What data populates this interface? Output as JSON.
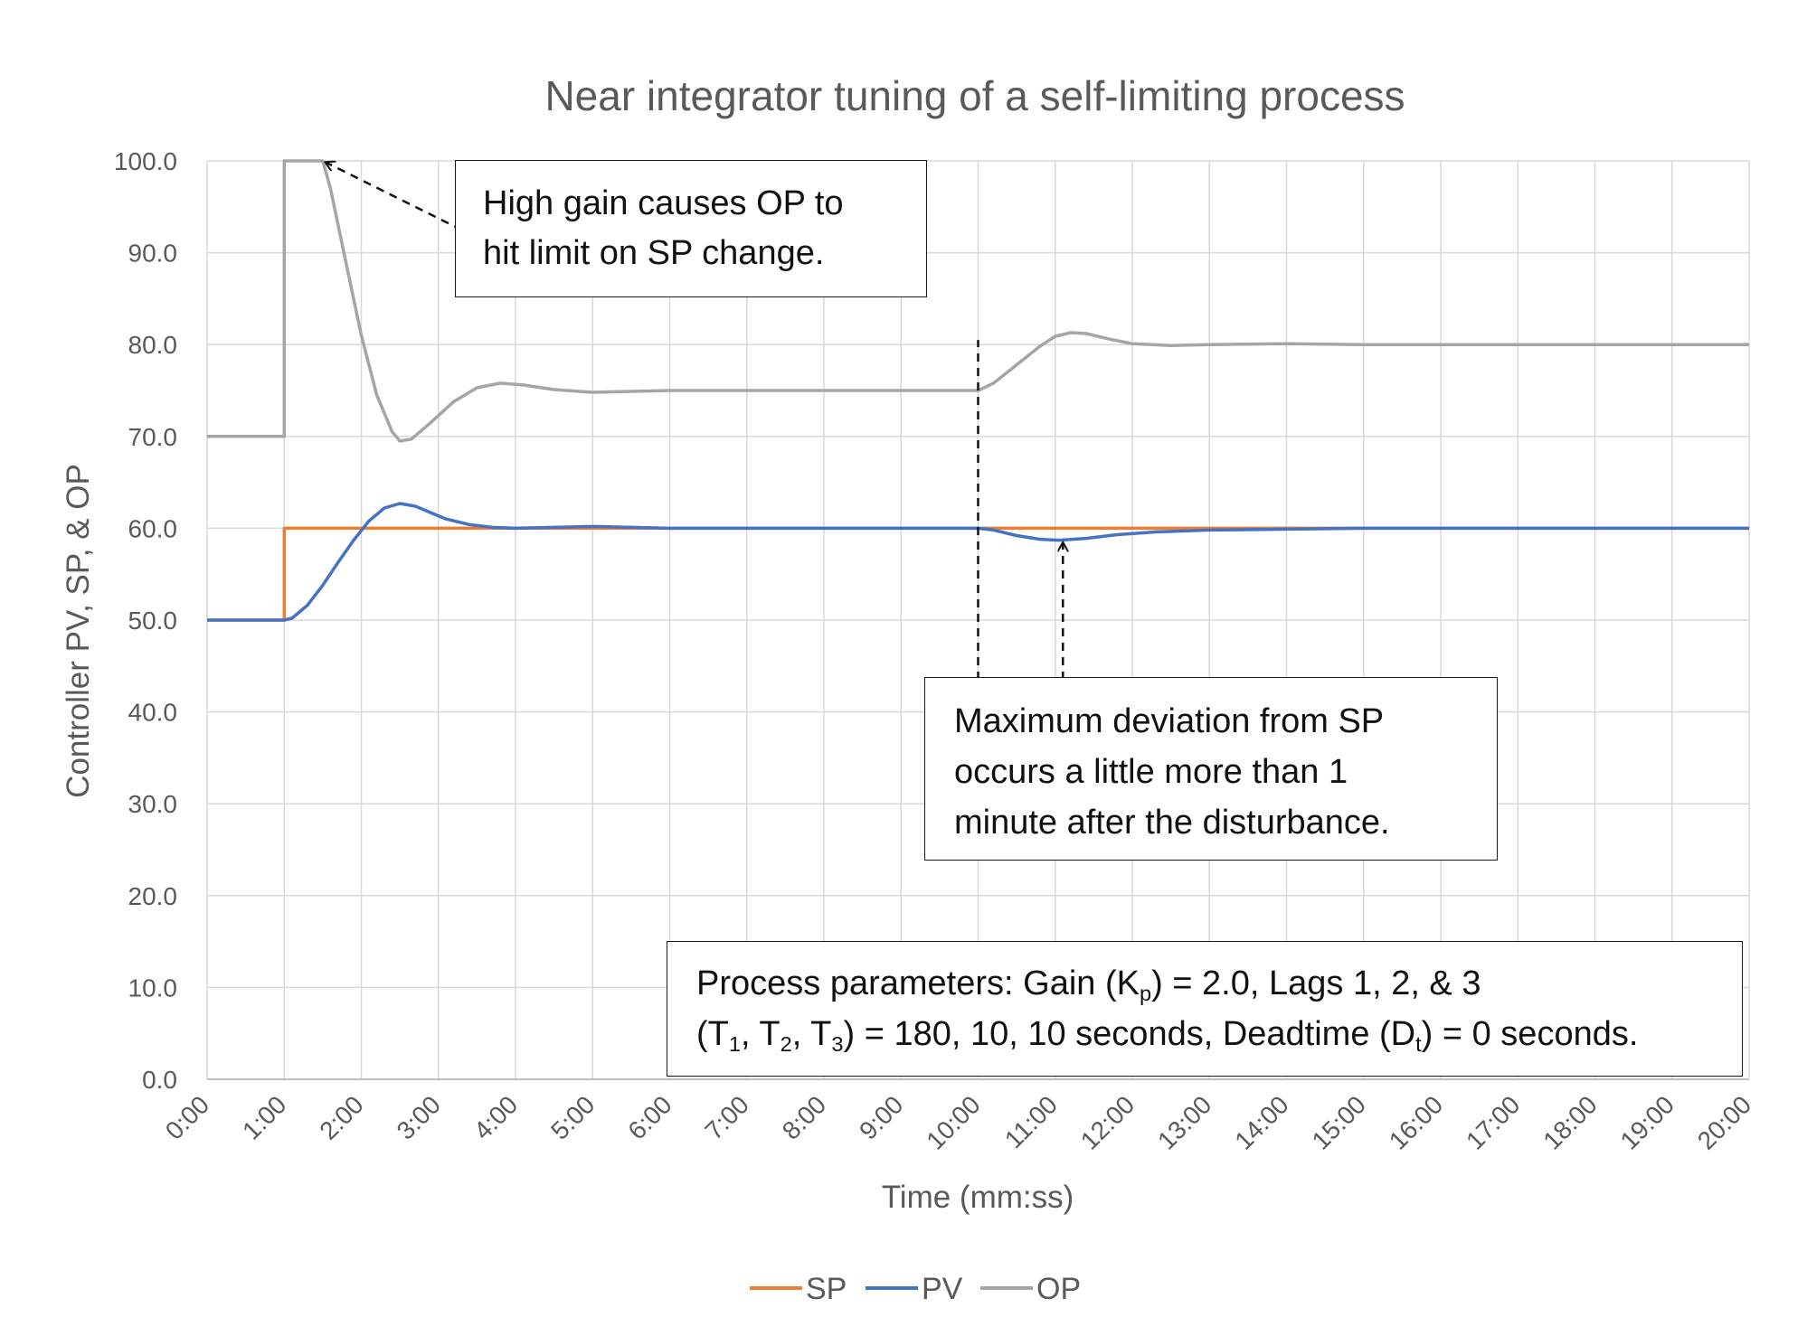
{
  "chart_data": {
    "type": "line",
    "title": "Near integrator tuning of a self-limiting process",
    "xlabel": "Time (mm:ss)",
    "ylabel": "Controller PV, SP, & OP",
    "ylim": [
      0,
      100
    ],
    "xlim": [
      0,
      20
    ],
    "grid": true,
    "legend_position": "bottom",
    "y_ticks": [
      "0.0",
      "10.0",
      "20.0",
      "30.0",
      "40.0",
      "50.0",
      "60.0",
      "70.0",
      "80.0",
      "90.0",
      "100.0"
    ],
    "x_ticks": [
      "0:00",
      "1:00",
      "2:00",
      "3:00",
      "4:00",
      "5:00",
      "6:00",
      "7:00",
      "8:00",
      "9:00",
      "10:00",
      "11:00",
      "12:00",
      "13:00",
      "14:00",
      "15:00",
      "16:00",
      "17:00",
      "18:00",
      "19:00",
      "20:00"
    ],
    "series": [
      {
        "name": "SP",
        "color": "#ED7D31",
        "points": [
          [
            0,
            50
          ],
          [
            1,
            50
          ],
          [
            1,
            60
          ],
          [
            20,
            60
          ]
        ]
      },
      {
        "name": "PV",
        "color": "#4472C4",
        "points": [
          [
            0,
            50
          ],
          [
            1,
            50
          ],
          [
            1.1,
            50.2
          ],
          [
            1.3,
            51.6
          ],
          [
            1.5,
            53.8
          ],
          [
            1.7,
            56.3
          ],
          [
            1.9,
            58.7
          ],
          [
            2.1,
            60.8
          ],
          [
            2.3,
            62.2
          ],
          [
            2.5,
            62.7
          ],
          [
            2.7,
            62.4
          ],
          [
            2.9,
            61.7
          ],
          [
            3.1,
            61.0
          ],
          [
            3.4,
            60.4
          ],
          [
            3.7,
            60.1
          ],
          [
            4.0,
            60.0
          ],
          [
            4.5,
            60.1
          ],
          [
            5.0,
            60.2
          ],
          [
            5.5,
            60.1
          ],
          [
            6.0,
            60.0
          ],
          [
            7.0,
            60.0
          ],
          [
            8.0,
            60.0
          ],
          [
            9.0,
            60.0
          ],
          [
            10.0,
            60.0
          ],
          [
            10.2,
            59.8
          ],
          [
            10.5,
            59.2
          ],
          [
            10.8,
            58.8
          ],
          [
            11.05,
            58.7
          ],
          [
            11.4,
            58.9
          ],
          [
            11.8,
            59.3
          ],
          [
            12.3,
            59.6
          ],
          [
            13.0,
            59.8
          ],
          [
            14.0,
            59.9
          ],
          [
            15.0,
            60.0
          ],
          [
            16.0,
            60.0
          ],
          [
            17.0,
            60.0
          ],
          [
            18.0,
            60.0
          ],
          [
            19.0,
            60.0
          ],
          [
            20.0,
            60.0
          ]
        ]
      },
      {
        "name": "OP",
        "color": "#A5A5A5",
        "points": [
          [
            0,
            70
          ],
          [
            1,
            70
          ],
          [
            1,
            100
          ],
          [
            1.5,
            100
          ],
          [
            1.6,
            97
          ],
          [
            1.8,
            89
          ],
          [
            2.0,
            81
          ],
          [
            2.2,
            74.5
          ],
          [
            2.4,
            70.5
          ],
          [
            2.5,
            69.5
          ],
          [
            2.65,
            69.7
          ],
          [
            2.9,
            71.5
          ],
          [
            3.2,
            73.8
          ],
          [
            3.5,
            75.3
          ],
          [
            3.8,
            75.8
          ],
          [
            4.1,
            75.6
          ],
          [
            4.5,
            75.1
          ],
          [
            5.0,
            74.8
          ],
          [
            5.5,
            74.9
          ],
          [
            6.0,
            75.0
          ],
          [
            7.0,
            75.0
          ],
          [
            8.0,
            75.0
          ],
          [
            9.0,
            75.0
          ],
          [
            10.0,
            75.0
          ],
          [
            10.2,
            75.8
          ],
          [
            10.5,
            77.8
          ],
          [
            10.8,
            79.8
          ],
          [
            11.0,
            80.9
          ],
          [
            11.2,
            81.3
          ],
          [
            11.4,
            81.2
          ],
          [
            11.7,
            80.6
          ],
          [
            12.0,
            80.1
          ],
          [
            12.5,
            79.9
          ],
          [
            13.0,
            80.0
          ],
          [
            14.0,
            80.1
          ],
          [
            15.0,
            80.0
          ],
          [
            16.0,
            80.0
          ],
          [
            17.0,
            80.0
          ],
          [
            18.0,
            80.0
          ],
          [
            19.0,
            80.0
          ],
          [
            20.0,
            80.0
          ]
        ]
      }
    ],
    "annotations": [
      {
        "id": "op-limit-note",
        "lines": [
          "High gain causes OP to",
          "hit limit on SP change."
        ]
      },
      {
        "id": "deviation-note",
        "lines": [
          "Maximum deviation from SP",
          "occurs a little more than 1",
          "minute after the disturbance."
        ]
      },
      {
        "id": "params-note",
        "line1_prefix": "Process parameters:  Gain (K",
        "line1_sub": "p",
        "line1_suffix": ") = 2.0, Lags 1, 2, & 3",
        "line2_a": "(T",
        "line2_sub1": "1",
        "line2_b": ", T",
        "line2_sub2": "2",
        "line2_c": ", T",
        "line2_sub3": "3",
        "line2_d": ") = 180, 10, 10 seconds, Deadtime (D",
        "line2_sub4": "t",
        "line2_e": ") = 0 seconds."
      }
    ],
    "arrows": [
      {
        "from": [
          3.3,
          92.5
        ],
        "to": [
          1.55,
          99.8
        ]
      },
      {
        "from": [
          11.1,
          43.5
        ],
        "to": [
          11.1,
          58.3
        ]
      }
    ],
    "disturbance_marker": {
      "x": 10,
      "y_from": 43.5,
      "y_to": 80.5
    }
  }
}
